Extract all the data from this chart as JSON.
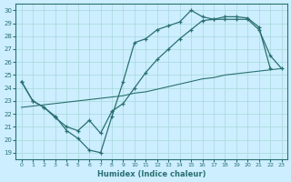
{
  "xlabel": "Humidex (Indice chaleur)",
  "bg_color": "#cceeff",
  "line_color": "#2a7070",
  "xlim": [
    -0.5,
    23.5
  ],
  "ylim": [
    18.5,
    30.5
  ],
  "xticks": [
    0,
    1,
    2,
    3,
    4,
    5,
    6,
    7,
    8,
    9,
    10,
    11,
    12,
    13,
    14,
    15,
    16,
    17,
    18,
    19,
    20,
    21,
    22,
    23
  ],
  "yticks": [
    19,
    20,
    21,
    22,
    23,
    24,
    25,
    26,
    27,
    28,
    29,
    30
  ],
  "line1_x": [
    0,
    1,
    2,
    3,
    4,
    5,
    6,
    7,
    8,
    9,
    10,
    11,
    12,
    13,
    14,
    15,
    16,
    17,
    18,
    19,
    20,
    21,
    22
  ],
  "line1_y": [
    24.5,
    23.0,
    22.5,
    21.7,
    21.0,
    20.7,
    21.5,
    20.5,
    22.2,
    22.8,
    24.0,
    25.2,
    26.2,
    27.0,
    27.8,
    28.5,
    29.2,
    29.3,
    29.5,
    29.5,
    29.4,
    28.7,
    25.5
  ],
  "line2_x": [
    0,
    1,
    2,
    3,
    4,
    5,
    6,
    7,
    8,
    9,
    10,
    11,
    12,
    13,
    14,
    15,
    16,
    17,
    18,
    19,
    20,
    21,
    22,
    23
  ],
  "line2_y": [
    24.5,
    23.0,
    22.5,
    21.8,
    20.7,
    20.1,
    19.2,
    19.0,
    21.8,
    24.5,
    27.5,
    27.8,
    28.5,
    28.8,
    29.1,
    30.0,
    29.5,
    29.3,
    29.3,
    29.3,
    29.3,
    28.5,
    26.5,
    25.5
  ],
  "line3_x": [
    0,
    1,
    2,
    3,
    4,
    5,
    6,
    7,
    8,
    9,
    10,
    11,
    12,
    13,
    14,
    15,
    16,
    17,
    18,
    19,
    20,
    21,
    22,
    23
  ],
  "line3_y": [
    22.5,
    22.6,
    22.7,
    22.8,
    22.9,
    23.0,
    23.1,
    23.2,
    23.3,
    23.4,
    23.6,
    23.7,
    23.9,
    24.1,
    24.3,
    24.5,
    24.7,
    24.8,
    25.0,
    25.1,
    25.2,
    25.3,
    25.4,
    25.5
  ]
}
